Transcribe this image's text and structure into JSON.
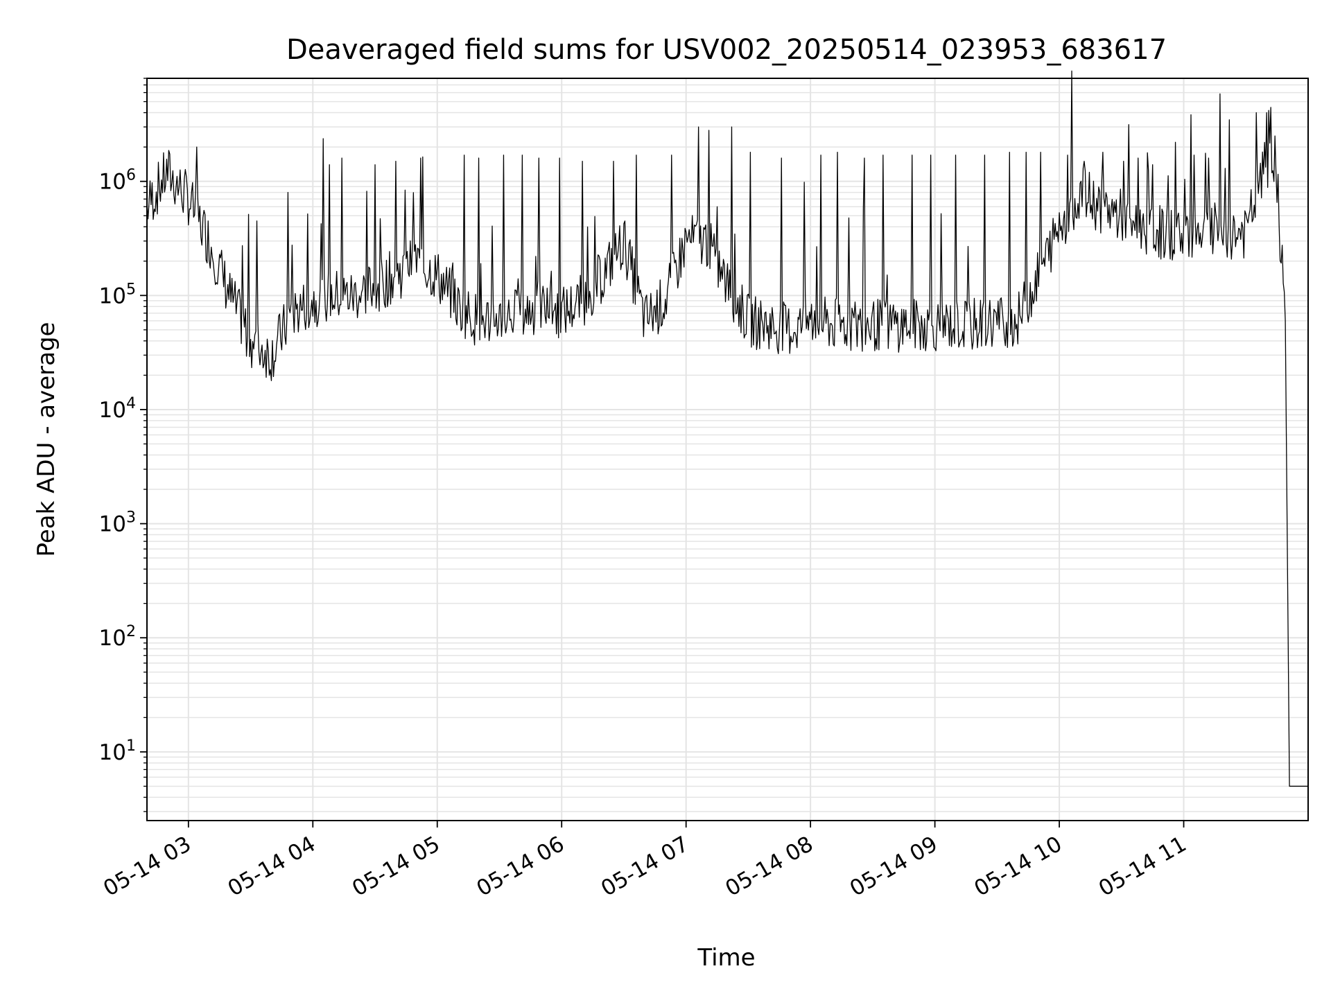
{
  "chart_data": {
    "type": "line",
    "title": "Deaveraged field sums for USV002_20250514_023953_683617",
    "xlabel": "Time",
    "ylabel": "Peak ADU - average",
    "yscale": "log",
    "ylim": [
      2.5,
      8000000
    ],
    "xlim": [
      "2025-05-14 02:40",
      "2025-05-14 12:00"
    ],
    "grid": "on (major and minor)",
    "line_color": "#000000",
    "x_ticks": [
      "05-14 03",
      "05-14 04",
      "05-14 05",
      "05-14 06",
      "05-14 07",
      "05-14 08",
      "05-14 09",
      "05-14 10",
      "05-14 11"
    ],
    "y_ticks": [
      {
        "value": 10,
        "base": "10",
        "exp": "1"
      },
      {
        "value": 100,
        "base": "10",
        "exp": "2"
      },
      {
        "value": 1000,
        "base": "10",
        "exp": "3"
      },
      {
        "value": 10000,
        "base": "10",
        "exp": "4"
      },
      {
        "value": 100000,
        "base": "10",
        "exp": "5"
      },
      {
        "value": 1000000,
        "base": "10",
        "exp": "6"
      }
    ],
    "series": [
      {
        "x": [
          "2025-05-14 02:40",
          "2025-05-14 02:50",
          "2025-05-14 03:00",
          "2025-05-14 03:10",
          "2025-05-14 03:20",
          "2025-05-14 03:30",
          "2025-05-14 03:40",
          "2025-05-14 03:50",
          "2025-05-14 04:00",
          "2025-05-14 04:10",
          "2025-05-14 04:20",
          "2025-05-14 04:30",
          "2025-05-14 04:40",
          "2025-05-14 04:50",
          "2025-05-14 05:00",
          "2025-05-14 05:10",
          "2025-05-14 05:20",
          "2025-05-14 05:30",
          "2025-05-14 05:40",
          "2025-05-14 05:50",
          "2025-05-14 06:00",
          "2025-05-14 06:10",
          "2025-05-14 06:20",
          "2025-05-14 06:30",
          "2025-05-14 06:40",
          "2025-05-14 06:50",
          "2025-05-14 07:00",
          "2025-05-14 07:10",
          "2025-05-14 07:20",
          "2025-05-14 07:30",
          "2025-05-14 07:40",
          "2025-05-14 07:50",
          "2025-05-14 08:00",
          "2025-05-14 08:10",
          "2025-05-14 08:20",
          "2025-05-14 08:30",
          "2025-05-14 08:40",
          "2025-05-14 08:50",
          "2025-05-14 09:00",
          "2025-05-14 09:10",
          "2025-05-14 09:20",
          "2025-05-14 09:30",
          "2025-05-14 09:40",
          "2025-05-14 09:50",
          "2025-05-14 10:00",
          "2025-05-14 10:10",
          "2025-05-14 10:20",
          "2025-05-14 10:30",
          "2025-05-14 10:40",
          "2025-05-14 10:50",
          "2025-05-14 11:00",
          "2025-05-14 11:10",
          "2025-05-14 11:20",
          "2025-05-14 11:30",
          "2025-05-14 11:40",
          "2025-05-14 11:45",
          "2025-05-14 11:49",
          "2025-05-14 11:51",
          "2025-05-14 12:00"
        ],
        "y": [
          600000,
          1200000,
          700000,
          300000,
          100000,
          40000,
          30000,
          70000,
          90000,
          100000,
          100000,
          120000,
          150000,
          200000,
          150000,
          80000,
          60000,
          65000,
          70000,
          80000,
          70000,
          90000,
          150000,
          300000,
          60000,
          90000,
          300000,
          300000,
          120000,
          60000,
          55000,
          50000,
          60000,
          55000,
          55000,
          55000,
          55000,
          55000,
          55000,
          55000,
          55000,
          60000,
          60000,
          150000,
          400000,
          800000,
          600000,
          500000,
          400000,
          350000,
          350000,
          400000,
          350000,
          350000,
          1500000,
          1000000,
          60000,
          5,
          5
        ],
        "spikes": [
          [
            "2025-05-14 03:04",
            2000000
          ],
          [
            "2025-05-14 03:33",
            450000
          ],
          [
            "2025-05-14 03:48",
            800000
          ],
          [
            "2025-05-14 04:08",
            1400000
          ],
          [
            "2025-05-14 04:14",
            1600000
          ],
          [
            "2025-05-14 04:30",
            1400000
          ],
          [
            "2025-05-14 04:40",
            1500000
          ],
          [
            "2025-05-14 04:52",
            1600000
          ],
          [
            "2025-05-14 05:13",
            1700000
          ],
          [
            "2025-05-14 05:20",
            1600000
          ],
          [
            "2025-05-14 05:32",
            1700000
          ],
          [
            "2025-05-14 05:41",
            1700000
          ],
          [
            "2025-05-14 05:49",
            1600000
          ],
          [
            "2025-05-14 05:59",
            1600000
          ],
          [
            "2025-05-14 06:10",
            1500000
          ],
          [
            "2025-05-14 06:25",
            1500000
          ],
          [
            "2025-05-14 06:36",
            1700000
          ],
          [
            "2025-05-14 06:53",
            1700000
          ],
          [
            "2025-05-14 07:06",
            3000000
          ],
          [
            "2025-05-14 07:11",
            2800000
          ],
          [
            "2025-05-14 07:22",
            3000000
          ],
          [
            "2025-05-14 07:31",
            1800000
          ],
          [
            "2025-05-14 07:46",
            1600000
          ],
          [
            "2025-05-14 08:05",
            1700000
          ],
          [
            "2025-05-14 08:13",
            1800000
          ],
          [
            "2025-05-14 08:26",
            1600000
          ],
          [
            "2025-05-14 08:35",
            1700000
          ],
          [
            "2025-05-14 08:49",
            1700000
          ],
          [
            "2025-05-14 08:58",
            1700000
          ],
          [
            "2025-05-14 09:10",
            1700000
          ],
          [
            "2025-05-14 09:24",
            1700000
          ],
          [
            "2025-05-14 09:36",
            1800000
          ],
          [
            "2025-05-14 09:44",
            1800000
          ],
          [
            "2025-05-14 09:51",
            1800000
          ],
          [
            "2025-05-14 10:04",
            1700000
          ],
          [
            "2025-05-14 10:12",
            1500000
          ],
          [
            "2025-05-14 10:21",
            1800000
          ],
          [
            "2025-05-14 10:31",
            1500000
          ],
          [
            "2025-05-14 10:38",
            1600000
          ],
          [
            "2025-05-14 10:45",
            1400000
          ],
          [
            "2025-05-14 10:56",
            2200000
          ],
          [
            "2025-05-14 11:05",
            1700000
          ],
          [
            "2025-05-14 11:12",
            1600000
          ],
          [
            "2025-05-14 11:20",
            1300000
          ],
          [
            "2025-05-14 11:35",
            4000000
          ],
          [
            "2025-05-14 11:40",
            4000000
          ],
          [
            "2025-05-14 11:44",
            2500000
          ]
        ]
      }
    ]
  }
}
